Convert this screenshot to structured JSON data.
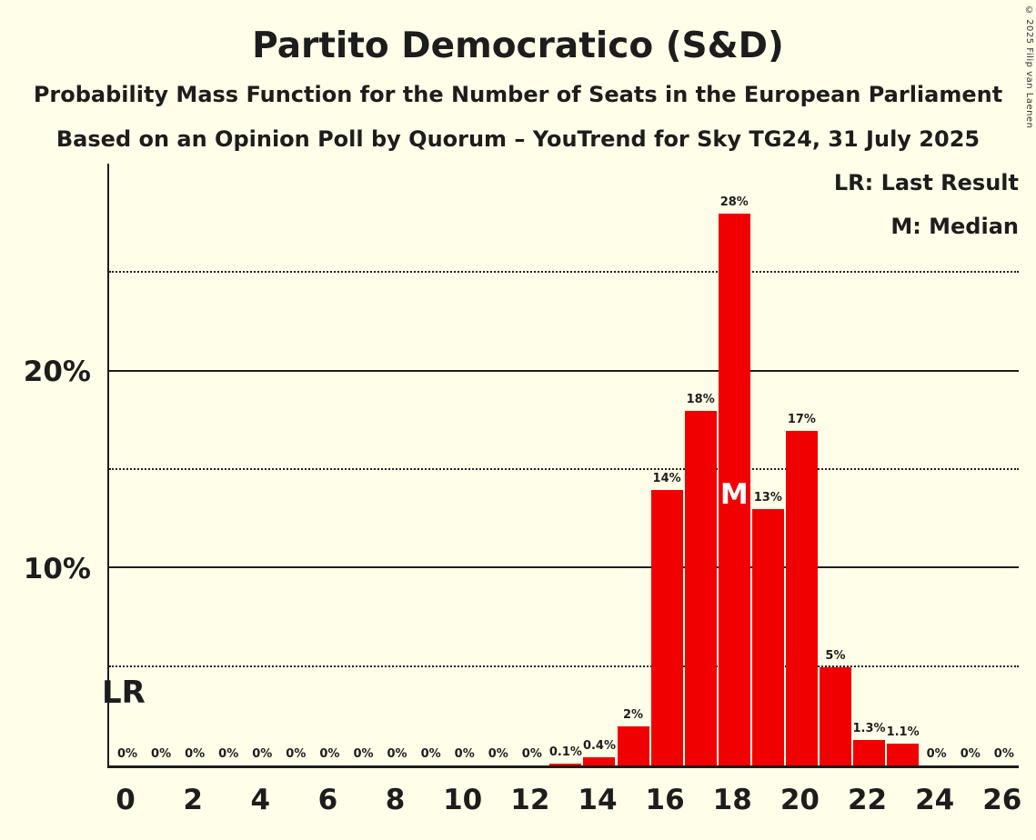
{
  "title": "Partito Democratico (S&D)",
  "subtitle1": "Probability Mass Function for the Number of Seats in the European Parliament",
  "subtitle2": "Based on an Opinion Poll by Quorum – YouTrend for Sky TG24, 31 July 2025",
  "legend": {
    "lr": "LR: Last Result",
    "m": "M: Median"
  },
  "copyright": "© 2025 Filip van Laenen",
  "colors": {
    "bar": "#F10000",
    "background": "#FFFFE9",
    "text": "#1d1d1d",
    "median_text": "#ffffff"
  },
  "chart_data": {
    "type": "bar",
    "title": "Partito Democratico (S&D)",
    "xlabel": "Number of Seats in the European Parliament",
    "ylabel": "Probability",
    "x": [
      0,
      1,
      2,
      3,
      4,
      5,
      6,
      7,
      8,
      9,
      10,
      11,
      12,
      13,
      14,
      15,
      16,
      17,
      18,
      19,
      20,
      21,
      22,
      23,
      24,
      25,
      26
    ],
    "values": [
      0,
      0,
      0,
      0,
      0,
      0,
      0,
      0,
      0,
      0,
      0,
      0,
      0,
      0.1,
      0.4,
      2,
      14,
      18,
      28,
      13,
      17,
      5,
      1.3,
      1.1,
      0,
      0,
      0
    ],
    "labels": [
      "0%",
      "0%",
      "0%",
      "0%",
      "0%",
      "0%",
      "0%",
      "0%",
      "0%",
      "0%",
      "0%",
      "0%",
      "0%",
      "0.1%",
      "0.4%",
      "2%",
      "14%",
      "18%",
      "28%",
      "13%",
      "17%",
      "5%",
      "1.3%",
      "1.1%",
      "0%",
      "0%",
      "0%"
    ],
    "ylim": [
      0,
      30.68
    ],
    "yticks": [
      10,
      20
    ],
    "solid_gridlines": [
      10,
      20
    ],
    "dotted_gridlines": [
      5,
      15,
      25
    ],
    "xticks": [
      0,
      2,
      4,
      6,
      8,
      10,
      12,
      14,
      16,
      18,
      20,
      22,
      24,
      26
    ],
    "median_seat": 18,
    "median_label": "M",
    "last_result_label": "LR",
    "grid": true,
    "legend_position": "top-right"
  }
}
